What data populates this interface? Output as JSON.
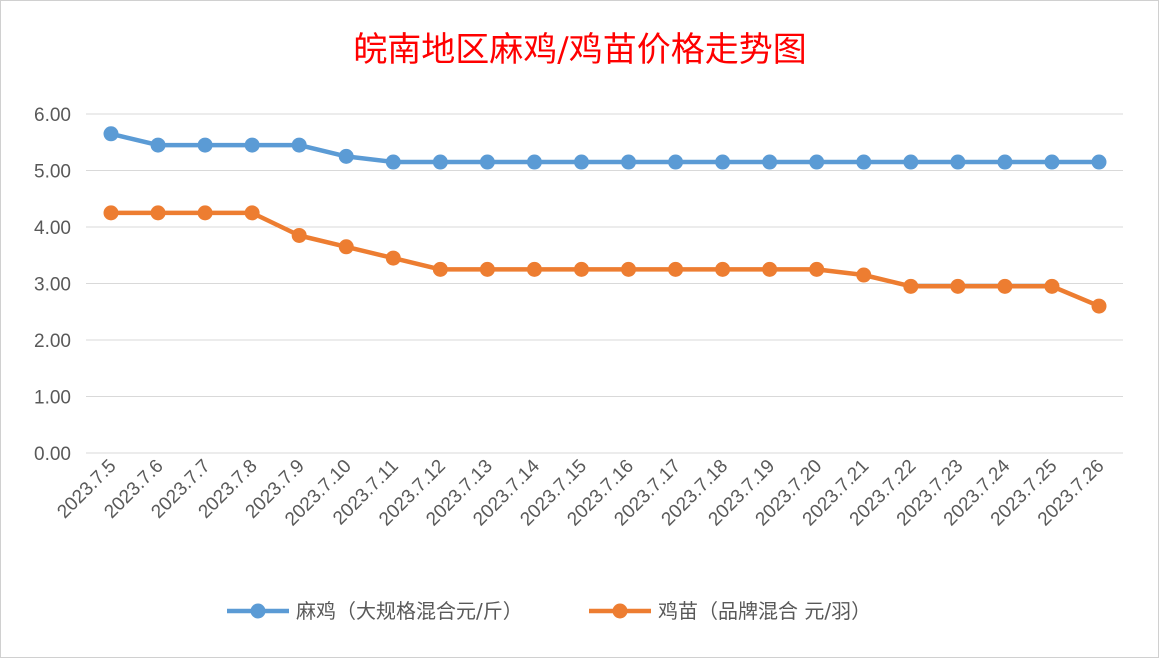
{
  "chart_data": {
    "type": "line",
    "title": "皖南地区麻鸡/鸡苗价格走势图",
    "categories": [
      "2023.7.5",
      "2023.7.6",
      "2023.7.7",
      "2023.7.8",
      "2023.7.9",
      "2023.7.10",
      "2023.7.11",
      "2023.7.12",
      "2023.7.13",
      "2023.7.14",
      "2023.7.15",
      "2023.7.16",
      "2023.7.17",
      "2023.7.18",
      "2023.7.19",
      "2023.7.20",
      "2023.7.21",
      "2023.7.22",
      "2023.7.23",
      "2023.7.24",
      "2023.7.25",
      "2023.7.26"
    ],
    "y_ticks": [
      "0.00",
      "1.00",
      "2.00",
      "3.00",
      "4.00",
      "5.00",
      "6.00"
    ],
    "ylim": [
      0,
      6
    ],
    "grid": true,
    "legend_position": "bottom",
    "series": [
      {
        "name": "麻鸡（大规格混合元/斤）",
        "color": "#5b9bd5",
        "values": [
          5.65,
          5.45,
          5.45,
          5.45,
          5.45,
          5.25,
          5.15,
          5.15,
          5.15,
          5.15,
          5.15,
          5.15,
          5.15,
          5.15,
          5.15,
          5.15,
          5.15,
          5.15,
          5.15,
          5.15,
          5.15,
          5.15
        ]
      },
      {
        "name": "鸡苗（品牌混合 元/羽）",
        "color": "#ed7d31",
        "values": [
          4.25,
          4.25,
          4.25,
          4.25,
          3.85,
          3.65,
          3.45,
          3.25,
          3.25,
          3.25,
          3.25,
          3.25,
          3.25,
          3.25,
          3.25,
          3.25,
          3.15,
          2.95,
          2.95,
          2.95,
          2.95,
          2.6
        ]
      }
    ]
  }
}
